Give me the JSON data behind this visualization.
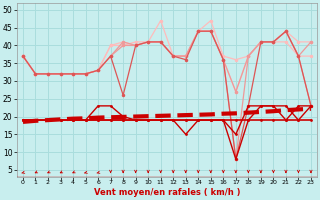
{
  "x": [
    0,
    1,
    2,
    3,
    4,
    5,
    6,
    7,
    8,
    9,
    10,
    11,
    12,
    13,
    14,
    15,
    16,
    17,
    18,
    19,
    20,
    21,
    22,
    23
  ],
  "background_color": "#c8eeee",
  "grid_color": "#aadddd",
  "xlabel": "Vent moyen/en rafales ( km/h )",
  "ylim": [
    3,
    52
  ],
  "yticks": [
    5,
    10,
    15,
    20,
    25,
    30,
    35,
    40,
    45,
    50
  ],
  "line_avg_flat": [
    19,
    19,
    19,
    19,
    19,
    19,
    19,
    19,
    19,
    19,
    19,
    19,
    19,
    19,
    19,
    19,
    19,
    19,
    19,
    19,
    19,
    19,
    19,
    19
  ],
  "line_trend": [
    18.5,
    18.8,
    19.0,
    19.2,
    19.4,
    19.5,
    19.7,
    19.8,
    19.9,
    20.0,
    20.1,
    20.2,
    20.3,
    20.4,
    20.5,
    20.6,
    20.8,
    20.9,
    21.1,
    21.3,
    21.5,
    21.8,
    22.0,
    22.2
  ],
  "line_wind_inst": [
    19,
    19,
    19,
    19,
    19,
    19,
    19,
    19,
    19,
    19,
    19,
    19,
    19,
    15,
    19,
    19,
    19,
    15,
    23,
    23,
    23,
    19,
    23,
    23
  ],
  "line_wind_dark": [
    19,
    19,
    19,
    19,
    19,
    19,
    23,
    23,
    20,
    19,
    19,
    19,
    19,
    19,
    19,
    19,
    19,
    8,
    19,
    23,
    23,
    23,
    19,
    23
  ],
  "line_gust_lightest": [
    37,
    32,
    32,
    32,
    32,
    32,
    33,
    40,
    40,
    41,
    41,
    47,
    37,
    37,
    44,
    47,
    37,
    36,
    37,
    41,
    41,
    44,
    41,
    41
  ],
  "line_gust_light1": [
    37,
    32,
    32,
    32,
    32,
    32,
    33,
    40,
    41,
    40,
    41,
    41,
    37,
    37,
    44,
    44,
    36,
    27,
    37,
    41,
    41,
    41,
    37,
    37
  ],
  "line_gust_light2": [
    37,
    32,
    32,
    32,
    32,
    32,
    33,
    37,
    41,
    40,
    41,
    41,
    37,
    37,
    44,
    44,
    36,
    27,
    37,
    41,
    41,
    44,
    37,
    41
  ],
  "line_gust_med1": [
    37,
    32,
    32,
    32,
    32,
    32,
    33,
    37,
    40,
    40,
    41,
    41,
    37,
    37,
    44,
    44,
    36,
    8,
    37,
    41,
    41,
    44,
    37,
    23
  ],
  "line_gust_med2": [
    37,
    32,
    32,
    32,
    32,
    32,
    33,
    37,
    26,
    40,
    41,
    41,
    37,
    36,
    44,
    44,
    36,
    8,
    23,
    41,
    41,
    44,
    37,
    23
  ],
  "color_dark_red": "#cc0000",
  "color_med_red": "#dd5555",
  "color_light_red": "#ee9999",
  "color_lightest_red": "#ffbbbb",
  "arrow_angles": [
    225,
    240,
    240,
    240,
    240,
    225,
    225,
    270,
    270,
    270,
    270,
    270,
    270,
    270,
    270,
    270,
    270,
    270,
    270,
    270,
    270,
    270,
    270,
    270
  ]
}
